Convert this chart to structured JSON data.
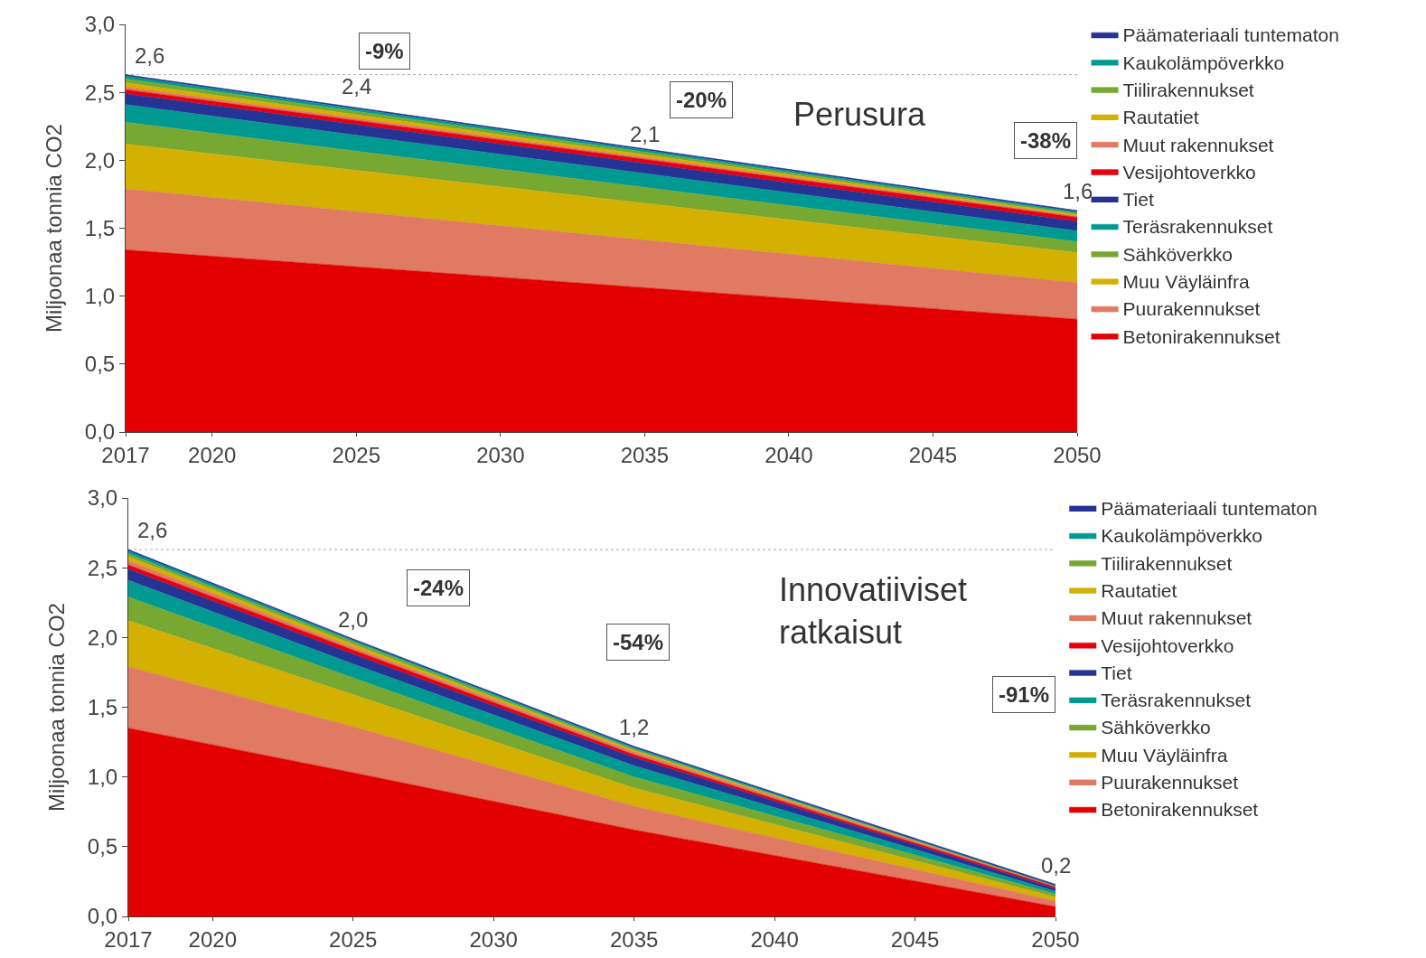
{
  "chart_data": [
    {
      "type": "area",
      "stacked": true,
      "title": "Perusura",
      "ylabel": "Miljoonaa tonnia CO2",
      "x": [
        2017,
        2050
      ],
      "xlim": [
        2017,
        2050
      ],
      "ylim": [
        0,
        3
      ],
      "xticks": [
        2017,
        2020,
        2025,
        2030,
        2035,
        2040,
        2045,
        2050
      ],
      "yticks": [
        {
          "value": 0,
          "label": "0,0"
        },
        {
          "value": 0.5,
          "label": "0,5"
        },
        {
          "value": 1,
          "label": "1,0"
        },
        {
          "value": 1.5,
          "label": "1,5"
        },
        {
          "value": 2,
          "label": "2,0"
        },
        {
          "value": 2.5,
          "label": "2,5"
        },
        {
          "value": 3,
          "label": "3,0"
        }
      ],
      "grid": false,
      "legend": "right",
      "series": [
        {
          "name": "Betonirakennukset",
          "color": "#e30000",
          "values": [
            1.34,
            0.83
          ]
        },
        {
          "name": "Puurakennukset",
          "color": "#e07a62",
          "values": [
            0.45,
            0.27
          ]
        },
        {
          "name": "Muu Väyläinfra",
          "color": "#d4b000",
          "values": [
            0.33,
            0.22
          ]
        },
        {
          "name": "Sähköverkko",
          "color": "#76a832",
          "values": [
            0.16,
            0.08
          ]
        },
        {
          "name": "Teräsrakennukset",
          "color": "#009a93",
          "values": [
            0.13,
            0.08
          ]
        },
        {
          "name": "Tiet",
          "color": "#253494",
          "values": [
            0.08,
            0.07
          ]
        },
        {
          "name": "Vesijohtoverkko",
          "color": "#e60012",
          "values": [
            0.03,
            0.03
          ]
        },
        {
          "name": "Muut rakennukset",
          "color": "#e07a62",
          "values": [
            0.02,
            0.01
          ]
        },
        {
          "name": "Rautatiet",
          "color": "#d4b000",
          "values": [
            0.03,
            0.01
          ]
        },
        {
          "name": "Tiilirakennukset",
          "color": "#76a832",
          "values": [
            0.03,
            0.01
          ]
        },
        {
          "name": "Kaukolämpöverkko",
          "color": "#009a93",
          "values": [
            0.02,
            0.01
          ]
        },
        {
          "name": "Päämateriaali tuntematon",
          "color": "#253494",
          "values": [
            0.01,
            0.01
          ]
        }
      ],
      "ref_lines": [
        {
          "axis": "y",
          "value": 2.63,
          "color": "#aaaaaa",
          "line_style": "dotted"
        }
      ],
      "annotations": [
        {
          "text": "2,6",
          "x": 2017,
          "y": 2.63
        },
        {
          "text": "2,4",
          "x": 2025,
          "y": 2.4
        },
        {
          "text": "2,1",
          "x": 2035,
          "y": 2.05
        },
        {
          "text": "1,6",
          "x": 2050,
          "y": 1.63
        },
        "-9%",
        "-20%",
        "-38%"
      ]
    },
    {
      "type": "area",
      "stacked": true,
      "title": "Innovatiiviset\nratkaisut",
      "ylabel": "Miljoonaa tonnia CO2",
      "x": [
        2017,
        2025,
        2035,
        2050
      ],
      "xlim": [
        2017,
        2050
      ],
      "ylim": [
        0,
        3
      ],
      "xticks": [
        2017,
        2020,
        2025,
        2030,
        2035,
        2040,
        2045,
        2050
      ],
      "yticks": [
        {
          "value": 0,
          "label": "0,0"
        },
        {
          "value": 0.5,
          "label": "0,5"
        },
        {
          "value": 1,
          "label": "1,0"
        },
        {
          "value": 1.5,
          "label": "1,5"
        },
        {
          "value": 2,
          "label": "2,0"
        },
        {
          "value": 2.5,
          "label": "2,5"
        },
        {
          "value": 3,
          "label": "3,0"
        }
      ],
      "grid": false,
      "legend": "right",
      "series": [
        {
          "name": "Betonirakennukset",
          "color": "#e30000",
          "values": [
            1.35,
            1.03,
            0.62,
            0.07
          ]
        },
        {
          "name": "Puurakennukset",
          "color": "#e07a62",
          "values": [
            0.44,
            0.33,
            0.17,
            0.04
          ]
        },
        {
          "name": "Muu Väyläinfra",
          "color": "#d4b000",
          "values": [
            0.33,
            0.23,
            0.13,
            0.03
          ]
        },
        {
          "name": "Sähköverkko",
          "color": "#76a832",
          "values": [
            0.17,
            0.12,
            0.08,
            0.02
          ]
        },
        {
          "name": "Teräsrakennukset",
          "color": "#009a93",
          "values": [
            0.12,
            0.1,
            0.08,
            0.02
          ]
        },
        {
          "name": "Tiet",
          "color": "#253494",
          "values": [
            0.08,
            0.07,
            0.06,
            0.02
          ]
        },
        {
          "name": "Vesijohtoverkko",
          "color": "#e60012",
          "values": [
            0.03,
            0.03,
            0.02,
            0.01
          ]
        },
        {
          "name": "Muut rakennukset",
          "color": "#e07a62",
          "values": [
            0.03,
            0.02,
            0.02,
            0.01
          ]
        },
        {
          "name": "Rautatiet",
          "color": "#d4b000",
          "values": [
            0.03,
            0.02,
            0.01,
            0
          ]
        },
        {
          "name": "Tiilirakennukset",
          "color": "#76a832",
          "values": [
            0.02,
            0.02,
            0.01,
            0
          ]
        },
        {
          "name": "Kaukolämpöverkko",
          "color": "#009a93",
          "values": [
            0.02,
            0.01,
            0.01,
            0
          ]
        },
        {
          "name": "Päämateriaali tuntematon",
          "color": "#253494",
          "values": [
            0.01,
            0.01,
            0.01,
            0.01
          ]
        }
      ],
      "ref_lines": [
        {
          "axis": "y",
          "value": 2.63,
          "color": "#aaaaaa",
          "line_style": "dotted"
        }
      ],
      "annotations": [
        {
          "text": "2,6",
          "x": 2017,
          "y": 2.63
        },
        {
          "text": "2,0",
          "x": 2025,
          "y": 1.99
        },
        {
          "text": "1,2",
          "x": 2035,
          "y": 1.22
        },
        {
          "text": "0,2",
          "x": 2050,
          "y": 0.23
        },
        "-24%",
        "-54%",
        "-91%"
      ]
    }
  ]
}
